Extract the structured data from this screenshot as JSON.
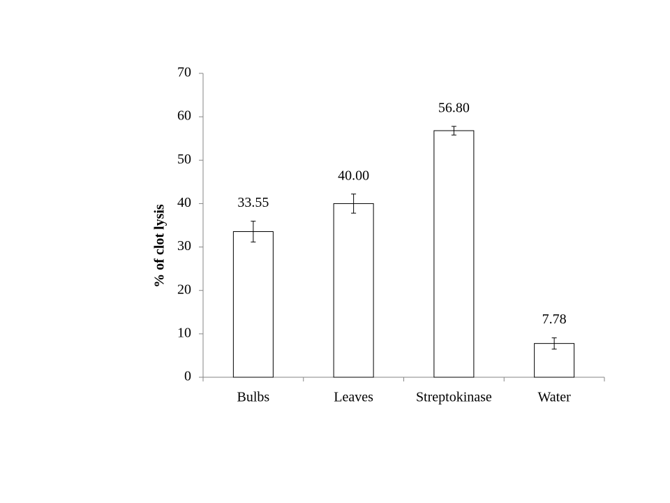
{
  "chart_data": {
    "type": "bar",
    "ylabel": "% of clot lysis",
    "categories": [
      "Bulbs",
      "Leaves",
      "Streptokinase",
      "Water"
    ],
    "values": [
      33.55,
      40.0,
      56.8,
      7.78
    ],
    "value_labels": [
      "33.55",
      "40.00",
      "56.80",
      "7.78"
    ],
    "errors": [
      2.4,
      2.2,
      1.0,
      1.3
    ],
    "color": "#ffffff",
    "edgecolor": "#000000",
    "ylim": [
      0,
      70
    ],
    "yticks": [
      0,
      10,
      20,
      30,
      40,
      50,
      60,
      70
    ],
    "grid": false
  }
}
